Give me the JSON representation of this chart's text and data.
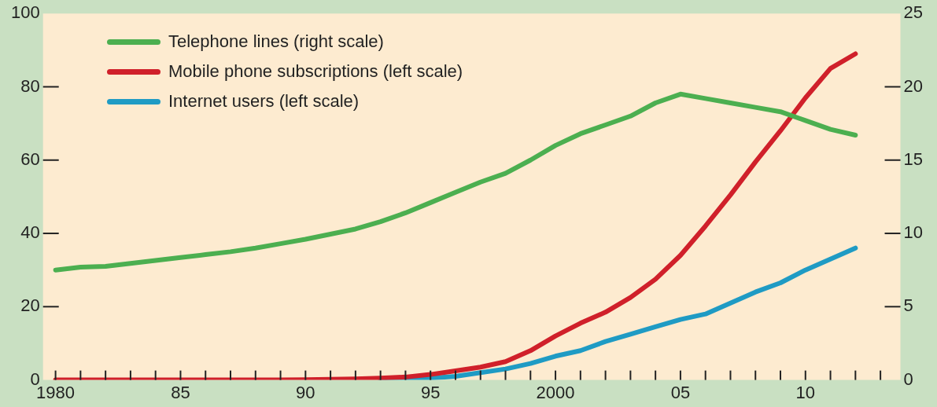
{
  "chart_data": {
    "type": "line",
    "xlim": [
      1979.5,
      2013.8
    ],
    "xticks": [
      {
        "value": 1980,
        "label": "1980"
      },
      {
        "value": 1981,
        "label": null
      },
      {
        "value": 1982,
        "label": null
      },
      {
        "value": 1983,
        "label": null
      },
      {
        "value": 1984,
        "label": null
      },
      {
        "value": 1985,
        "label": "85"
      },
      {
        "value": 1986,
        "label": null
      },
      {
        "value": 1987,
        "label": null
      },
      {
        "value": 1988,
        "label": null
      },
      {
        "value": 1989,
        "label": null
      },
      {
        "value": 1990,
        "label": "90"
      },
      {
        "value": 1991,
        "label": null
      },
      {
        "value": 1992,
        "label": null
      },
      {
        "value": 1993,
        "label": null
      },
      {
        "value": 1994,
        "label": null
      },
      {
        "value": 1995,
        "label": "95"
      },
      {
        "value": 1996,
        "label": null
      },
      {
        "value": 1997,
        "label": null
      },
      {
        "value": 1998,
        "label": null
      },
      {
        "value": 1999,
        "label": null
      },
      {
        "value": 2000,
        "label": "2000"
      },
      {
        "value": 2001,
        "label": null
      },
      {
        "value": 2002,
        "label": null
      },
      {
        "value": 2003,
        "label": null
      },
      {
        "value": 2004,
        "label": null
      },
      {
        "value": 2005,
        "label": "05"
      },
      {
        "value": 2006,
        "label": null
      },
      {
        "value": 2007,
        "label": null
      },
      {
        "value": 2008,
        "label": null
      },
      {
        "value": 2009,
        "label": null
      },
      {
        "value": 2010,
        "label": "10"
      },
      {
        "value": 2011,
        "label": null
      },
      {
        "value": 2012,
        "label": null
      },
      {
        "value": 2013,
        "label": null
      }
    ],
    "ylim": [
      0,
      100
    ],
    "yticks": [
      0,
      20,
      40,
      60,
      80,
      100
    ],
    "y2lim": [
      0,
      25
    ],
    "y2ticks": [
      0,
      5,
      10,
      15,
      20,
      25
    ],
    "grid": false,
    "legend": "top left",
    "marker": "none",
    "line_style": "solid",
    "series": [
      {
        "name": "Telephone lines (right scale)",
        "color": "#4caf50",
        "axis": "y2",
        "x": [
          1980,
          1981,
          1982,
          1983,
          1984,
          1985,
          1986,
          1987,
          1988,
          1989,
          1990,
          1991,
          1992,
          1993,
          1994,
          1995,
          1996,
          1997,
          1998,
          1999,
          2000,
          2001,
          2002,
          2003,
          2004,
          2005,
          2006,
          2007,
          2008,
          2009,
          2010,
          2011,
          2012
        ],
        "values": [
          7.5,
          7.7,
          7.75,
          7.95,
          8.15,
          8.35,
          8.55,
          8.75,
          9.0,
          9.3,
          9.6,
          9.95,
          10.3,
          10.8,
          11.4,
          12.1,
          12.8,
          13.5,
          14.1,
          15.0,
          16.0,
          16.8,
          17.4,
          18.0,
          18.9,
          19.5,
          19.2,
          18.9,
          18.6,
          18.3,
          17.7,
          17.1,
          16.7
        ]
      },
      {
        "name": "Mobile phone subscriptions (left scale)",
        "color": "#d0202a",
        "x": [
          1980,
          1981,
          1982,
          1983,
          1984,
          1985,
          1986,
          1987,
          1988,
          1989,
          1990,
          1991,
          1992,
          1993,
          1994,
          1995,
          1996,
          1997,
          1998,
          1999,
          2000,
          2001,
          2002,
          2003,
          2004,
          2005,
          2006,
          2007,
          2008,
          2009,
          2010,
          2011,
          2012
        ],
        "values": [
          0,
          0,
          0,
          0,
          0,
          0,
          0,
          0,
          0,
          0,
          0.1,
          0.2,
          0.3,
          0.5,
          0.8,
          1.5,
          2.5,
          3.5,
          5,
          8,
          12,
          15.5,
          18.5,
          22.5,
          27.5,
          34,
          42,
          50.5,
          59.5,
          68,
          77,
          85,
          89
        ]
      },
      {
        "name": "Internet users (left scale)",
        "color": "#1f9bc4",
        "x": [
          1993,
          1994,
          1995,
          1996,
          1997,
          1998,
          1999,
          2000,
          2001,
          2002,
          2003,
          2004,
          2005,
          2006,
          2007,
          2008,
          2009,
          2010,
          2011,
          2012
        ],
        "values": [
          0,
          0.2,
          0.5,
          1,
          2,
          3,
          4.5,
          6.5,
          8,
          10.5,
          12.5,
          14.5,
          16.5,
          18,
          21,
          24,
          26.5,
          30,
          33,
          36
        ]
      }
    ]
  }
}
